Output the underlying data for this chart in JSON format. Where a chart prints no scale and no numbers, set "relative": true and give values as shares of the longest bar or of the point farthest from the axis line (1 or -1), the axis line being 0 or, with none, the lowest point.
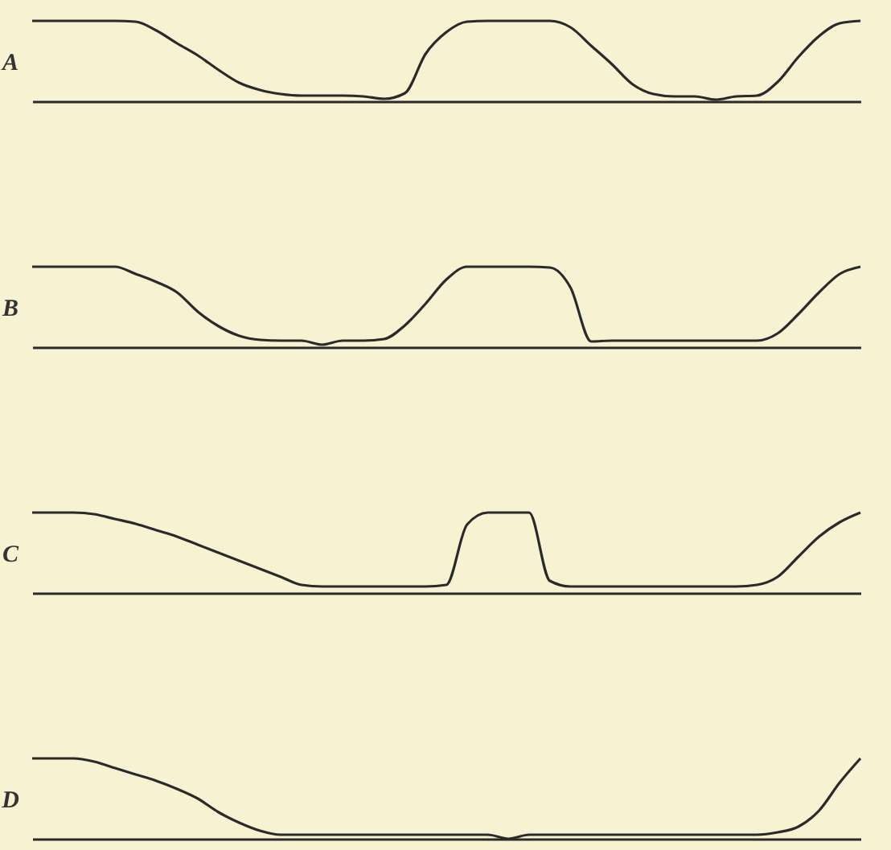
{
  "chart_data": [
    {
      "type": "line",
      "ylabel": "A",
      "relative": true,
      "categories": [
        null,
        null,
        null,
        null,
        null,
        null,
        null,
        null,
        null,
        null,
        null,
        null,
        null,
        null,
        null,
        null,
        null,
        null,
        null,
        null,
        null,
        null,
        null,
        null,
        null,
        null,
        null,
        null,
        null,
        null,
        null,
        null,
        null,
        null,
        null,
        null,
        null,
        null,
        null,
        null,
        null
      ],
      "series": [
        {
          "color": "#2a2a2a",
          "values": [
            1,
            1,
            1,
            1,
            1,
            0.99,
            0.88,
            0.72,
            0.57,
            0.39,
            0.23,
            0.14,
            0.09,
            0.07,
            0.07,
            0.07,
            0.06,
            0.03,
            0.1,
            0.59,
            0.86,
            0.99,
            1,
            1,
            1,
            1,
            0.92,
            0.69,
            0.46,
            0.21,
            0.09,
            0.06,
            0.06,
            0.02,
            0.06,
            0.07,
            0.24,
            0.55,
            0.81,
            0.97,
            1
          ]
        }
      ]
    },
    {
      "type": "line",
      "ylabel": "B",
      "relative": true,
      "categories": [
        null,
        null,
        null,
        null,
        null,
        null,
        null,
        null,
        null,
        null,
        null,
        null,
        null,
        null,
        null,
        null,
        null,
        null,
        null,
        null,
        null,
        null,
        null,
        null,
        null,
        null,
        null,
        null,
        null,
        null,
        null,
        null,
        null,
        null,
        null,
        null,
        null,
        null,
        null,
        null,
        null
      ],
      "series": [
        {
          "color": "#2a2a2a",
          "values": [
            1,
            1,
            1,
            1,
            1,
            0.91,
            0.81,
            0.68,
            0.44,
            0.26,
            0.14,
            0.09,
            0.08,
            0.08,
            0.03,
            0.08,
            0.08,
            0.1,
            0.27,
            0.54,
            0.84,
            1,
            1,
            1,
            1,
            0.99,
            0.74,
            0.07,
            0.08,
            0.08,
            0.08,
            0.08,
            0.08,
            0.08,
            0.08,
            0.08,
            0.17,
            0.41,
            0.68,
            0.91,
            1
          ]
        }
      ]
    },
    {
      "type": "line",
      "ylabel": "C",
      "relative": true,
      "categories": [
        null,
        null,
        null,
        null,
        null,
        null,
        null,
        null,
        null,
        null,
        null,
        null,
        null,
        null,
        null,
        null,
        null,
        null,
        null,
        null,
        null,
        null,
        null,
        null,
        null,
        null,
        null,
        null,
        null,
        null,
        null,
        null,
        null,
        null,
        null,
        null,
        null,
        null,
        null,
        null,
        null
      ],
      "series": [
        {
          "color": "#2a2a2a",
          "values": [
            1,
            1,
            1,
            0.98,
            0.92,
            0.86,
            0.78,
            0.7,
            0.6,
            0.5,
            0.4,
            0.3,
            0.2,
            0.1,
            0.08,
            0.08,
            0.08,
            0.08,
            0.08,
            0.08,
            0.1,
            0.85,
            1,
            1,
            1,
            0.15,
            0.08,
            0.08,
            0.08,
            0.08,
            0.08,
            0.08,
            0.08,
            0.08,
            0.08,
            0.1,
            0.2,
            0.45,
            0.7,
            0.88,
            1
          ]
        }
      ]
    },
    {
      "type": "line",
      "ylabel": "D",
      "relative": true,
      "categories": [
        null,
        null,
        null,
        null,
        null,
        null,
        null,
        null,
        null,
        null,
        null,
        null,
        null,
        null,
        null,
        null,
        null,
        null,
        null,
        null,
        null,
        null,
        null,
        null,
        null,
        null,
        null,
        null,
        null,
        null,
        null,
        null,
        null,
        null,
        null,
        null,
        null,
        null,
        null,
        null,
        null
      ],
      "series": [
        {
          "color": "#2a2a2a",
          "values": [
            1,
            1,
            1,
            0.96,
            0.88,
            0.8,
            0.72,
            0.62,
            0.5,
            0.33,
            0.2,
            0.1,
            0.05,
            0.05,
            0.05,
            0.05,
            0.05,
            0.05,
            0.05,
            0.05,
            0.05,
            0.05,
            0.05,
            0,
            0.05,
            0.05,
            0.05,
            0.05,
            0.05,
            0.05,
            0.05,
            0.05,
            0.05,
            0.05,
            0.05,
            0.05,
            0.08,
            0.15,
            0.35,
            0.7,
            1
          ]
        }
      ]
    }
  ]
}
